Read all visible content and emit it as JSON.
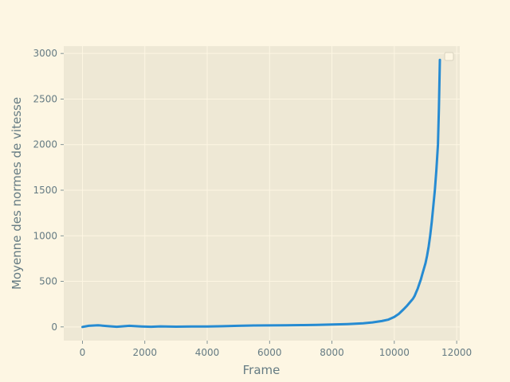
{
  "chart_data": {
    "type": "line",
    "xlabel": "Frame",
    "ylabel": "Moyenne des normes de vitesse",
    "xlim": [
      -600,
      12100
    ],
    "ylim": [
      -150,
      3080
    ],
    "xticks": [
      0,
      2000,
      4000,
      6000,
      8000,
      10000,
      12000
    ],
    "yticks": [
      0,
      500,
      1000,
      1500,
      2000,
      2500,
      3000
    ],
    "grid": true,
    "legend": "top-right",
    "colors": {
      "background": "#fdf6e3",
      "plot_area": "#eee8d5",
      "line": "#268bd2",
      "text": "#657b83",
      "grid": "#fdf6e3"
    },
    "series": [
      {
        "x": [
          0,
          200,
          500,
          800,
          1100,
          1500,
          1900,
          2200,
          2500,
          3000,
          3500,
          4000,
          4500,
          5000,
          5500,
          6000,
          6500,
          7000,
          7500,
          8000,
          8500,
          9000,
          9300,
          9600,
          9800,
          10000,
          10150,
          10300,
          10400,
          10500,
          10600,
          10650,
          10700,
          10750,
          10800,
          10850,
          10900,
          10950,
          11000,
          11050,
          11100,
          11150,
          11200,
          11250,
          11300,
          11350,
          11400,
          11430,
          11460
        ],
        "y": [
          0,
          12,
          18,
          10,
          2,
          12,
          5,
          2,
          6,
          3,
          5,
          5,
          8,
          12,
          16,
          17,
          18,
          20,
          22,
          26,
          32,
          40,
          50,
          65,
          80,
          110,
          145,
          195,
          230,
          270,
          310,
          340,
          380,
          420,
          470,
          520,
          580,
          640,
          700,
          780,
          880,
          1000,
          1150,
          1320,
          1500,
          1720,
          2000,
          2400,
          2930
        ]
      }
    ]
  }
}
